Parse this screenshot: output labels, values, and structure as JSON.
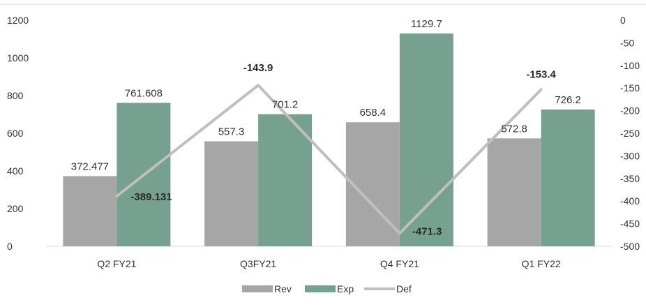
{
  "chart_data": {
    "type": "bar",
    "categories": [
      "Q2 FY21",
      "Q3FY21",
      "Q4 FY21",
      "Q1 FY22"
    ],
    "series": [
      {
        "name": "Rev",
        "type": "bar",
        "axis": "left",
        "color": "#a6a6a6",
        "values": [
          372.477,
          557.3,
          658.4,
          572.8
        ],
        "labels": [
          "372.477",
          "557.3",
          "658.4",
          "572.8"
        ]
      },
      {
        "name": "Exp",
        "type": "bar",
        "axis": "left",
        "color": "#76a090",
        "values": [
          761.608,
          701.2,
          1129.7,
          726.2
        ],
        "labels": [
          "761.608",
          "701.2",
          "1129.7",
          "726.2"
        ]
      },
      {
        "name": "Def",
        "type": "line",
        "axis": "right",
        "color": "#bfbfbf",
        "values": [
          -389.131,
          -143.9,
          -471.3,
          -153.4
        ],
        "labels": [
          "-389.131",
          "-143.9",
          "-471.3",
          "-153.4"
        ]
      }
    ],
    "y_left": {
      "ylim": [
        0,
        1200
      ],
      "ticks": [
        "0",
        "200",
        "400",
        "600",
        "800",
        "1000",
        "1200"
      ]
    },
    "y_right": {
      "ylim": [
        -500,
        0
      ],
      "ticks": [
        "0",
        "-50",
        "-100",
        "-150",
        "-200",
        "-250",
        "-300",
        "-350",
        "-400",
        "-450",
        "-500"
      ]
    },
    "legend": {
      "position": "bottom",
      "items": [
        "Rev",
        "Exp",
        "Def"
      ]
    },
    "grid": false
  }
}
